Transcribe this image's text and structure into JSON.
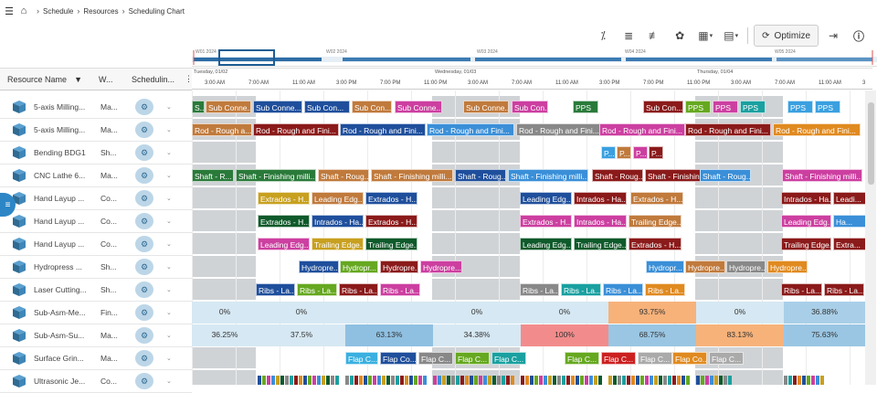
{
  "breadcrumb": {
    "home_icon": "home-icon",
    "items": [
      "Schedule",
      "Resources",
      "Scheduling Chart"
    ]
  },
  "toolbar": {
    "optimize_label": "Optimize"
  },
  "grid": {
    "columns": [
      "Resource Name",
      "W...",
      "Schedulin..."
    ]
  },
  "overview": {
    "weeks": [
      "W01 2024",
      "W02 2024",
      "W03 2024",
      "W04 2024",
      "W05 2024"
    ]
  },
  "timeline": {
    "days": [
      "Tuesday, 01/02",
      "Wednesday, 01/03",
      "Thursday, 01/04"
    ],
    "hours": [
      "3:00 AM",
      "7:00 AM",
      "11:00 AM",
      "3:00 PM",
      "7:00 PM",
      "11:00 PM",
      "3:00 AM",
      "7:00 AM",
      "11:00 AM",
      "3:00 PM",
      "7:00 PM",
      "11:00 PM",
      "3:00 AM",
      "7:00 AM",
      "11:00 AM",
      "3"
    ]
  },
  "resources": [
    {
      "name": "5-axis Milling...",
      "wc": "Ma..."
    },
    {
      "name": "5-axis Milling...",
      "wc": "Ma..."
    },
    {
      "name": "Bending BDG1",
      "wc": "Sh..."
    },
    {
      "name": "CNC Lathe 6...",
      "wc": "Ma..."
    },
    {
      "name": "Hand Layup ...",
      "wc": "Co..."
    },
    {
      "name": "Hand Layup ...",
      "wc": "Co..."
    },
    {
      "name": "Hand Layup ...",
      "wc": "Co..."
    },
    {
      "name": "Hydropress ...",
      "wc": "Sh..."
    },
    {
      "name": "Laser Cutting...",
      "wc": "Sh..."
    },
    {
      "name": "Sub-Asm-Me...",
      "wc": "Fin..."
    },
    {
      "name": "Sub-Asm-Su...",
      "wc": "Ma..."
    },
    {
      "name": "Surface Grin...",
      "wc": "Ma..."
    },
    {
      "name": "Ultrasonic Je...",
      "wc": "Co..."
    }
  ],
  "bars": [
    [
      [
        "S...",
        "#2a7a3a"
      ],
      [
        "Sub Conne...",
        "#c07a3c"
      ],
      [
        "Sub Conne...",
        "#1f4f9c"
      ],
      [
        "Sub Con...",
        "#1f4f9c"
      ],
      [
        "Sub Con...",
        "#c07a3c"
      ],
      [
        "Sub Conne...",
        "#cc3fa0"
      ],
      [
        "Sub Conne...",
        "#c07a3c"
      ],
      [
        "Sub Con...",
        "#cc3fa0"
      ],
      [
        "PPS",
        "#2a7a3a"
      ],
      [
        "Sub Con...",
        "#8b1a1a"
      ],
      [
        "PPS",
        "#66a820"
      ],
      [
        "PPS",
        "#cc3fa0"
      ],
      [
        "PPS",
        "#1aa0a0"
      ],
      [
        "PPS",
        "#3aa0e0"
      ],
      [
        "PPS",
        "#3aa0e0"
      ]
    ],
    [
      [
        "Rod - Rough a...",
        "#c07a3c"
      ],
      [
        "Rod - Rough and Fini...",
        "#8b1a1a"
      ],
      [
        "Rod - Rough and Fini...",
        "#1f4f9c"
      ],
      [
        "Rod - Rough and Fini...",
        "#3a8fd8"
      ],
      [
        "Rod - Rough and Fini...",
        "#888888"
      ],
      [
        "Rod - Rough and Fini...",
        "#cc3fa0"
      ],
      [
        "Rod - Rough and Fini...",
        "#8b1a1a"
      ],
      [
        "Rod - Rough and Fini...",
        "#e08a20"
      ]
    ],
    [
      [
        "P...",
        "#3aa0e0"
      ],
      [
        "P...",
        "#c07a3c"
      ],
      [
        "P...",
        "#cc3fa0"
      ],
      [
        "P...",
        "#8b1a1a"
      ]
    ],
    [
      [
        "Shaft - R...",
        "#2a7a3a"
      ],
      [
        "Shaft - Finishing milli...",
        "#2a7a3a"
      ],
      [
        "Shaft - Roug...",
        "#c07a3c"
      ],
      [
        "Shaft - Finishing milli...",
        "#c07a3c"
      ],
      [
        "Shaft - Roug...",
        "#1f4f9c"
      ],
      [
        "Shaft - Finishing milli...",
        "#3a8fd8"
      ],
      [
        "Shaft - Roug...",
        "#8b1a1a"
      ],
      [
        "Shaft - Finishing milli...",
        "#8b1a1a"
      ],
      [
        "Shaft - Roug...",
        "#3a8fd8"
      ],
      [
        "Shaft - Finishing milli...",
        "#cc3fa0"
      ]
    ],
    [
      [
        "Extrados - H...",
        "#c8a020"
      ],
      [
        "Leading Edg...",
        "#c07a3c"
      ],
      [
        "Extrados - H...",
        "#1f4f9c"
      ],
      [
        "Leading Edg...",
        "#1f4f9c"
      ],
      [
        "Intrados - Ha...",
        "#8b1a1a"
      ],
      [
        "Extrados - H...",
        "#c07a3c"
      ],
      [
        "Intrados - Ha...",
        "#8b1a1a"
      ],
      [
        "Leadi...",
        "#8b1a1a"
      ]
    ],
    [
      [
        "Extrados - H...",
        "#0e5a2a"
      ],
      [
        "Intrados - Ha...",
        "#1f4f9c"
      ],
      [
        "Extrados - H...",
        "#8b1a1a"
      ],
      [
        "Extrados - H...",
        "#cc3fa0"
      ],
      [
        "Intrados - Ha...",
        "#cc3fa0"
      ],
      [
        "Trailing Edge...",
        "#c07a3c"
      ],
      [
        "Leading Edg...",
        "#cc3fa0"
      ],
      [
        "Ha...",
        "#3a8fd8"
      ]
    ],
    [
      [
        "Leading Edg...",
        "#cc3fa0"
      ],
      [
        "Trailing Edge...",
        "#c8a020"
      ],
      [
        "Trailing Edge...",
        "#0e5a2a"
      ],
      [
        "Leading Edg...",
        "#0e5a2a"
      ],
      [
        "Trailing Edge...",
        "#0e5a2a"
      ],
      [
        "Extrados - H...",
        "#8b1a1a"
      ],
      [
        "Trailing Edge...",
        "#8b1a1a"
      ],
      [
        "Extra...",
        "#8b1a1a"
      ]
    ],
    [
      [
        "Hydropre...",
        "#1f4f9c"
      ],
      [
        "Hydropr...",
        "#66a820"
      ],
      [
        "Hydropre...",
        "#8b1a1a"
      ],
      [
        "Hydropre...",
        "#cc3fa0"
      ],
      [
        "Hydropr...",
        "#3a8fd8"
      ],
      [
        "Hydropre...",
        "#c07a3c"
      ],
      [
        "Hydropre...",
        "#888888"
      ],
      [
        "Hydropre...",
        "#e08a20"
      ]
    ],
    [
      [
        "Ribs - La...",
        "#1f4f9c"
      ],
      [
        "Ribs - La...",
        "#66a820"
      ],
      [
        "Ribs - La...",
        "#8b1a1a"
      ],
      [
        "Ribs - La...",
        "#cc3fa0"
      ],
      [
        "Ribs - La...",
        "#888888"
      ],
      [
        "Ribs - La...",
        "#1aa0a0"
      ],
      [
        "Ribs - La...",
        "#3a8fd8"
      ],
      [
        "Ribs - La...",
        "#e08a20"
      ],
      [
        "Ribs - La...",
        "#8b1a1a"
      ],
      [
        "Ribs - La...",
        "#8b1a1a"
      ]
    ],
    [],
    [],
    [
      [
        "Flap C...",
        "#3ab0e0"
      ],
      [
        "Flap Co...",
        "#1f4f9c"
      ],
      [
        "Flap C...",
        "#888888"
      ],
      [
        "Flap C...",
        "#66a820"
      ],
      [
        "Flap C...",
        "#1aa0a0"
      ],
      [
        "Flap C...",
        "#66a820"
      ],
      [
        "Flap C...",
        "#cc2020"
      ],
      [
        "Flap C...",
        "#aaaaaa"
      ],
      [
        "Flap Co...",
        "#e08a20"
      ],
      [
        "Flap C...",
        "#aaaaaa"
      ]
    ],
    []
  ],
  "util_row1": [
    "0%",
    "0%",
    "0%",
    "0%",
    "93.75%",
    "0%",
    "36.88%"
  ],
  "util_row2": [
    "36.25%",
    "37.5%",
    "63.13%",
    "34.38%",
    "100%",
    "68.75%",
    "83.13%",
    "75.63%"
  ]
}
